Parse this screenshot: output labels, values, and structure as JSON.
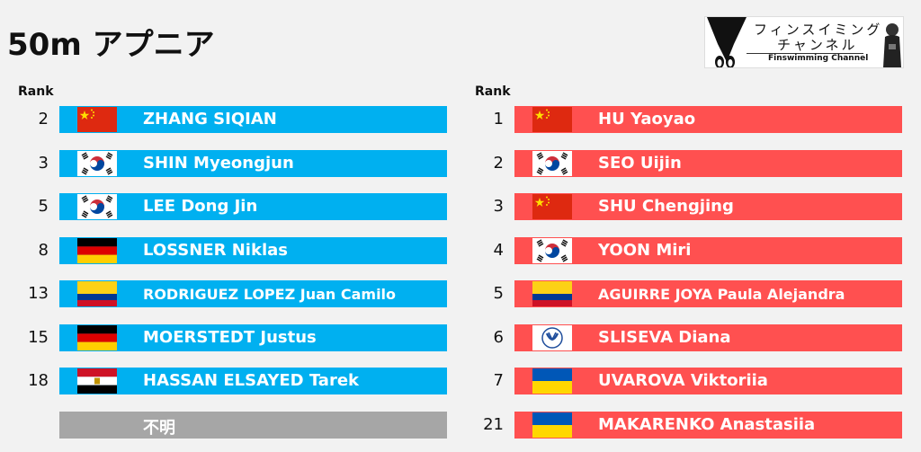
{
  "title": "50m アプニア",
  "logo": {
    "jp_line1": "フィンスイミング",
    "jp_line2": "チャンネル",
    "en": "Finswimming Channel"
  },
  "rank_header": "Rank",
  "colors": {
    "men_bar": "#00b0f0",
    "women_bar": "#ff5050",
    "unknown_bar": "#a6a6a6"
  },
  "men": [
    {
      "rank": "2",
      "flag": "china-flag",
      "name": "ZHANG SIQIAN"
    },
    {
      "rank": "3",
      "flag": "korea-flag",
      "name": "SHIN Myeongjun"
    },
    {
      "rank": "5",
      "flag": "korea-flag",
      "name": "LEE Dong Jin"
    },
    {
      "rank": "8",
      "flag": "germany-flag",
      "name": "LOSSNER Niklas"
    },
    {
      "rank": "13",
      "flag": "colombia-flag",
      "name": "RODRIGUEZ LOPEZ Juan Camilo"
    },
    {
      "rank": "15",
      "flag": "germany-flag",
      "name": "MOERSTEDT Justus"
    },
    {
      "rank": "18",
      "flag": "egypt-flag",
      "name": "HASSAN ELSAYED Tarek"
    },
    {
      "rank": "",
      "flag": "",
      "name": "不明"
    }
  ],
  "women": [
    {
      "rank": "1",
      "flag": "china-flag",
      "name": "HU Yaoyao"
    },
    {
      "rank": "2",
      "flag": "korea-flag",
      "name": "SEO Uijin"
    },
    {
      "rank": "3",
      "flag": "china-flag",
      "name": "SHU Chengjing"
    },
    {
      "rank": "4",
      "flag": "korea-flag",
      "name": "YOON Miri"
    },
    {
      "rank": "5",
      "flag": "colombia-flag",
      "name": "AGUIRRE JOYA Paula Alejandra"
    },
    {
      "rank": "6",
      "flag": "neutral-flag",
      "name": "SLISEVA Diana"
    },
    {
      "rank": "7",
      "flag": "ukraine-flag",
      "name": "UVAROVA Viktoriia"
    },
    {
      "rank": "21",
      "flag": "ukraine-flag",
      "name": "MAKARENKO Anastasiia"
    }
  ]
}
